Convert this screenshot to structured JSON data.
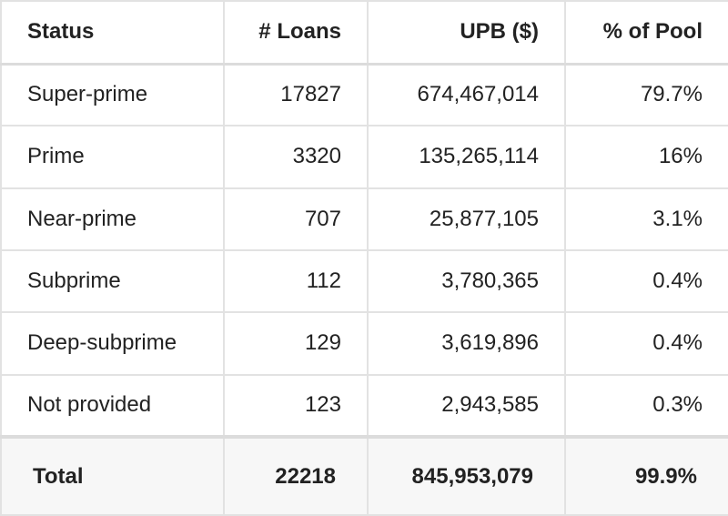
{
  "table": {
    "header": [
      "Status",
      "# Loans",
      "UPB ($)",
      "% of Pool"
    ],
    "rows": [
      [
        "Super-prime",
        "17827",
        "674,467,014",
        "79.7%"
      ],
      [
        "Prime",
        "3320",
        "135,265,114",
        "16%"
      ],
      [
        "Near-prime",
        "707",
        "25,877,105",
        "3.1%"
      ],
      [
        "Subprime",
        "112",
        "3,780,365",
        "0.4%"
      ],
      [
        "Deep-subprime",
        "129",
        "3,619,896",
        "0.4%"
      ],
      [
        "Not provided",
        "123",
        "2,943,585",
        "0.3%"
      ]
    ],
    "footer": [
      "Total",
      "22218",
      "845,953,079",
      "99.9%"
    ]
  }
}
